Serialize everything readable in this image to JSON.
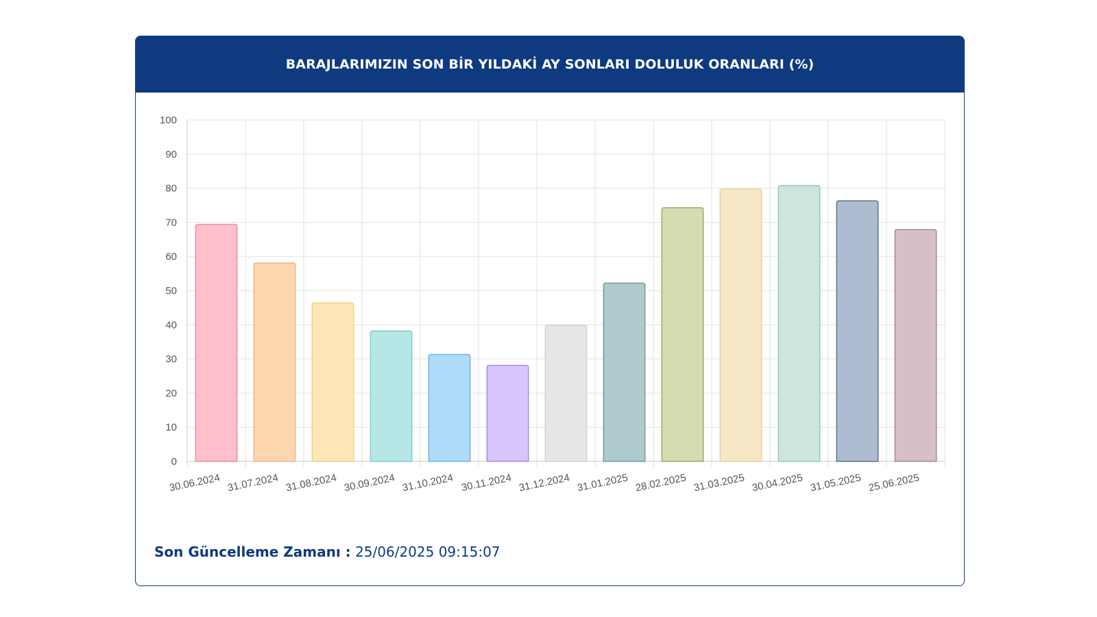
{
  "card": {
    "title": "BARAJLARIMIZIN SON BİR YILDAKİ AY SONLARI DOLULUK ORANLARI (%)"
  },
  "footer": {
    "label": "Son Güncelleme Zamanı :",
    "value": "25/06/2025 09:15:07"
  },
  "colors": {
    "header_bg": "#0f3a80",
    "grid": "#e2e2e2"
  },
  "chart_data": {
    "type": "bar",
    "title": "BARAJLARIMIZIN SON BİR YILDAKİ AY SONLARI DOLULUK ORANLARI (%)",
    "xlabel": "",
    "ylabel": "",
    "ylim": [
      0,
      100
    ],
    "yticks": [
      0,
      10,
      20,
      30,
      40,
      50,
      60,
      70,
      80,
      90,
      100
    ],
    "grid": true,
    "legend": "none",
    "categories": [
      "30.06.2024",
      "31.07.2024",
      "31.08.2024",
      "30.09.2024",
      "31.10.2024",
      "30.11.2024",
      "31.12.2024",
      "31.01.2025",
      "28.02.2025",
      "31.03.2025",
      "30.04.2025",
      "31.05.2025",
      "25.06.2025"
    ],
    "values": [
      69.4,
      58.1,
      46.4,
      38.2,
      31.3,
      28.1,
      39.8,
      52.2,
      74.3,
      79.8,
      80.8,
      76.3,
      67.9
    ],
    "bar_fill": [
      "#ffc0cc",
      "#fdd6b0",
      "#fde6b8",
      "#b6e6e6",
      "#b0dafa",
      "#d6c6fd",
      "#e6e7e9",
      "#afcace",
      "#d6dbb0",
      "#f6e7c6",
      "#cce6de",
      "#adbcd0",
      "#d6c0c6"
    ],
    "bar_stroke": [
      "#f08aa2",
      "#f3b484",
      "#f3d08c",
      "#80cfcf",
      "#6fb3e3",
      "#a989ea",
      "#cfd1d4",
      "#6f9aa0",
      "#9ea86a",
      "#ead39a",
      "#8fcab6",
      "#5d7190",
      "#a88793"
    ]
  }
}
